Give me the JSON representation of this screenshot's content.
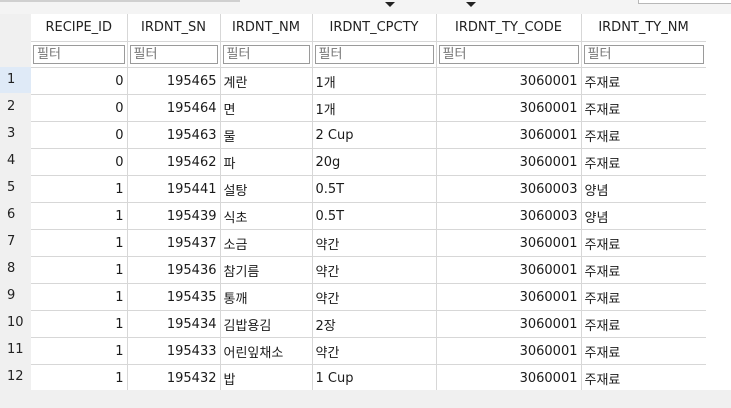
{
  "grid": {
    "columns": [
      "RECIPE_ID",
      "IRDNT_SN",
      "IRDNT_NM",
      "IRDNT_CPCTY",
      "IRDNT_TY_CODE",
      "IRDNT_TY_NM"
    ],
    "filter_placeholder": "필터",
    "rows": [
      {
        "rownum": "1",
        "cells": [
          "0",
          "195465",
          "계란",
          "1개",
          "3060001",
          "주재료"
        ]
      },
      {
        "rownum": "2",
        "cells": [
          "0",
          "195464",
          "면",
          "1개",
          "3060001",
          "주재료"
        ]
      },
      {
        "rownum": "3",
        "cells": [
          "0",
          "195463",
          "물",
          "2 Cup",
          "3060001",
          "주재료"
        ]
      },
      {
        "rownum": "4",
        "cells": [
          "0",
          "195462",
          "파",
          "20g",
          "3060001",
          "주재료"
        ]
      },
      {
        "rownum": "5",
        "cells": [
          "1",
          "195441",
          "설탕",
          "0.5T",
          "3060003",
          "양념"
        ]
      },
      {
        "rownum": "6",
        "cells": [
          "1",
          "195439",
          "식초",
          "0.5T",
          "3060003",
          "양념"
        ]
      },
      {
        "rownum": "7",
        "cells": [
          "1",
          "195437",
          "소금",
          "약간",
          "3060001",
          "주재료"
        ]
      },
      {
        "rownum": "8",
        "cells": [
          "1",
          "195436",
          "참기름",
          "약간",
          "3060001",
          "주재료"
        ]
      },
      {
        "rownum": "9",
        "cells": [
          "1",
          "195435",
          "통깨",
          "약간",
          "3060001",
          "주재료"
        ]
      },
      {
        "rownum": "10",
        "cells": [
          "1",
          "195434",
          "김밥용김",
          "2장",
          "3060001",
          "주재료"
        ]
      },
      {
        "rownum": "11",
        "cells": [
          "1",
          "195433",
          "어린잎채소",
          "약간",
          "3060001",
          "주재료"
        ]
      },
      {
        "rownum": "12",
        "cells": [
          "1",
          "195432",
          "밥",
          "1 Cup",
          "3060001",
          "주재료"
        ]
      }
    ]
  }
}
